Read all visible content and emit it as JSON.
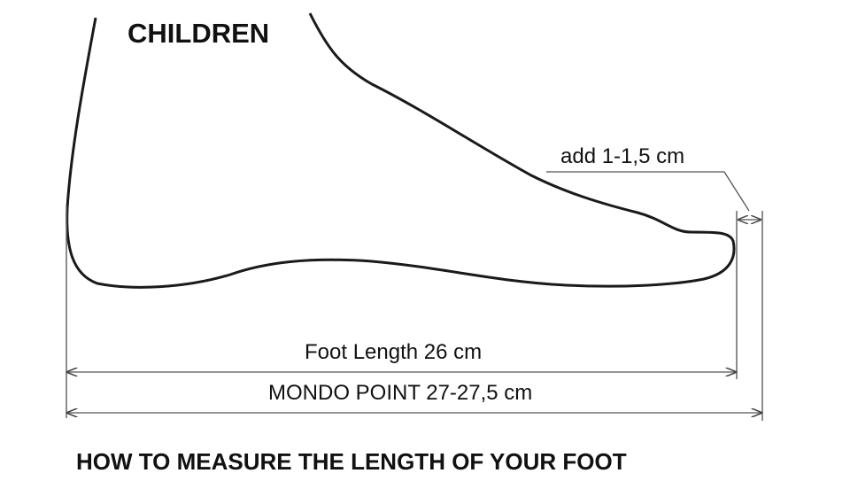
{
  "title": "CHILDREN",
  "add_label": "add 1-1,5 cm",
  "foot_length_label": "Foot Length 26 cm",
  "mondo_point_label": "MONDO POINT 27-27,5 cm",
  "footer": "HOW TO MEASURE THE LENGTH OF YOUR FOOT"
}
